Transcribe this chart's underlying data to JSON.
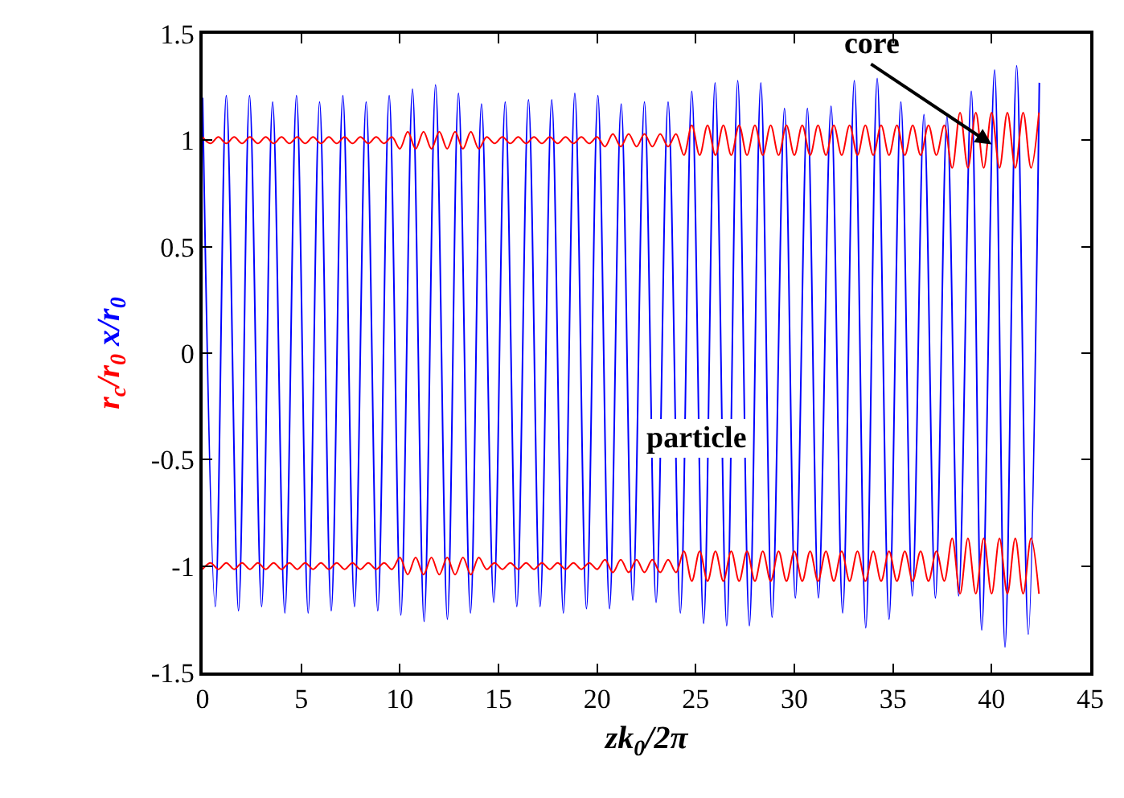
{
  "chart_data": {
    "type": "line",
    "xlabel": "zk$_{0}$/2π",
    "xlim": [
      0,
      45
    ],
    "xticks": [
      0,
      5,
      10,
      15,
      20,
      25,
      30,
      35,
      40,
      45
    ],
    "ylim": [
      -1.5,
      1.5
    ],
    "yticks": [
      -1.5,
      -1,
      -0.5,
      0,
      0.5,
      1,
      1.5
    ],
    "legend": false,
    "marker": "none",
    "line_style": "solid",
    "series": [
      {
        "name": "r$_{c}$/r$_{0}$",
        "color": "#ff0000",
        "x": [
          0,
          0.4,
          0.8,
          1.2,
          1.6,
          2,
          2.4,
          2.8,
          3.2,
          3.6,
          4,
          4.4,
          4.8,
          5.2,
          5.6,
          6,
          6.4,
          6.8,
          7.2,
          7.6,
          8,
          8.4,
          8.8,
          9.2,
          9.6,
          10,
          10.4,
          10.8,
          11.2,
          11.6,
          12,
          12.4,
          12.8,
          13.2,
          13.6,
          14,
          14.4,
          14.8,
          15.2,
          15.6,
          16,
          16.4,
          16.8,
          17.2,
          17.6,
          18,
          18.4,
          18.8,
          19.2,
          19.6,
          20,
          20.4,
          20.8,
          21.2,
          21.6,
          22,
          22.4,
          22.8,
          23.2,
          23.6,
          24,
          24.4,
          24.8,
          25.2,
          25.6,
          26,
          26.4,
          26.8,
          27.2,
          27.6,
          28,
          28.4,
          28.8,
          29.2,
          29.6,
          30,
          30.4,
          30.8,
          31.2,
          31.6,
          32,
          32.4,
          32.8,
          33.2,
          33.6,
          34,
          34.4,
          34.8,
          35.2,
          35.6,
          36,
          36.4,
          36.8,
          37.2,
          37.6,
          38,
          38.4,
          38.8,
          39.2,
          39.6,
          40,
          40.4,
          40.8,
          41.2,
          41.6,
          42,
          42.4
        ],
        "values": [
          1.015,
          0.985,
          1.015,
          0.985,
          1.015,
          0.985,
          1.015,
          0.985,
          1.015,
          0.985,
          1.015,
          0.985,
          1.015,
          0.985,
          1.015,
          0.985,
          1.015,
          0.985,
          1.015,
          0.985,
          1.015,
          0.985,
          1.015,
          0.985,
          1.015,
          0.96,
          1.04,
          0.96,
          1.04,
          0.96,
          1.04,
          0.96,
          1.04,
          0.96,
          1.04,
          0.96,
          1.015,
          0.985,
          1.015,
          0.985,
          1.015,
          0.985,
          1.015,
          0.985,
          1.015,
          0.985,
          1.015,
          0.985,
          1.015,
          0.985,
          1.015,
          0.97,
          1.03,
          0.97,
          1.03,
          0.97,
          1.03,
          0.97,
          1.03,
          0.97,
          1.03,
          0.93,
          1.07,
          0.93,
          1.07,
          0.93,
          1.07,
          0.93,
          1.07,
          0.93,
          1.07,
          0.93,
          1.07,
          0.93,
          1.07,
          0.93,
          1.07,
          0.93,
          1.07,
          0.93,
          1.07,
          0.93,
          1.07,
          0.93,
          1.07,
          0.93,
          1.07,
          0.93,
          1.07,
          0.93,
          1.07,
          0.93,
          1.07,
          0.93,
          1.07,
          0.87,
          1.13,
          0.87,
          1.13,
          0.87,
          1.13,
          0.87,
          1.13,
          0.87,
          1.13,
          0.87,
          1.13
        ]
      },
      {
        "color": "#ff0000",
        "x": [
          0,
          0.4,
          0.8,
          1.2,
          1.6,
          2,
          2.4,
          2.8,
          3.2,
          3.6,
          4,
          4.4,
          4.8,
          5.2,
          5.6,
          6,
          6.4,
          6.8,
          7.2,
          7.6,
          8,
          8.4,
          8.8,
          9.2,
          9.6,
          10,
          10.4,
          10.8,
          11.2,
          11.6,
          12,
          12.4,
          12.8,
          13.2,
          13.6,
          14,
          14.4,
          14.8,
          15.2,
          15.6,
          16,
          16.4,
          16.8,
          17.2,
          17.6,
          18,
          18.4,
          18.8,
          19.2,
          19.6,
          20,
          20.4,
          20.8,
          21.2,
          21.6,
          22,
          22.4,
          22.8,
          23.2,
          23.6,
          24,
          24.4,
          24.8,
          25.2,
          25.6,
          26,
          26.4,
          26.8,
          27.2,
          27.6,
          28,
          28.4,
          28.8,
          29.2,
          29.6,
          30,
          30.4,
          30.8,
          31.2,
          31.6,
          32,
          32.4,
          32.8,
          33.2,
          33.6,
          34,
          34.4,
          34.8,
          35.2,
          35.6,
          36,
          36.4,
          36.8,
          37.2,
          37.6,
          38,
          38.4,
          38.8,
          39.2,
          39.6,
          40,
          40.4,
          40.8,
          41.2,
          41.6,
          42,
          42.4
        ],
        "values": [
          -1.015,
          -0.985,
          -1.015,
          -0.985,
          -1.015,
          -0.985,
          -1.015,
          -0.985,
          -1.015,
          -0.985,
          -1.015,
          -0.985,
          -1.015,
          -0.985,
          -1.015,
          -0.985,
          -1.015,
          -0.985,
          -1.015,
          -0.985,
          -1.015,
          -0.985,
          -1.015,
          -0.985,
          -1.015,
          -0.96,
          -1.04,
          -0.96,
          -1.04,
          -0.96,
          -1.04,
          -0.96,
          -1.04,
          -0.96,
          -1.04,
          -0.96,
          -1.015,
          -0.985,
          -1.015,
          -0.985,
          -1.015,
          -0.985,
          -1.015,
          -0.985,
          -1.015,
          -0.985,
          -1.015,
          -0.985,
          -1.015,
          -0.985,
          -1.015,
          -0.97,
          -1.03,
          -0.97,
          -1.03,
          -0.97,
          -1.03,
          -0.97,
          -1.03,
          -0.97,
          -1.03,
          -0.93,
          -1.07,
          -0.93,
          -1.07,
          -0.93,
          -1.07,
          -0.93,
          -1.07,
          -0.93,
          -1.07,
          -0.93,
          -1.07,
          -0.93,
          -1.07,
          -0.93,
          -1.07,
          -0.93,
          -1.07,
          -0.93,
          -1.07,
          -0.93,
          -1.07,
          -0.93,
          -1.07,
          -0.93,
          -1.07,
          -0.93,
          -1.07,
          -0.93,
          -1.07,
          -0.93,
          -1.07,
          -0.93,
          -1.07,
          -0.87,
          -1.13,
          -0.87,
          -1.13,
          -0.87,
          -1.13,
          -0.87,
          -1.13,
          -0.87,
          -1.13,
          -0.87,
          -1.13
        ]
      },
      {
        "name": "x/r$_{0}$",
        "color": "#0000ff",
        "x": [
          0,
          0.64,
          1.2,
          1.82,
          2.38,
          2.99,
          3.55,
          4.17,
          4.76,
          5.35,
          5.93,
          6.52,
          7.11,
          7.7,
          8.29,
          8.88,
          9.46,
          10.05,
          10.64,
          11.23,
          11.81,
          12.41,
          12.97,
          13.58,
          14.14,
          14.76,
          15.34,
          15.93,
          16.52,
          17.11,
          17.7,
          18.29,
          18.87,
          19.46,
          20.04,
          20.63,
          21.22,
          21.81,
          22.4,
          22.99,
          23.6,
          24.22,
          24.8,
          25.4,
          25.98,
          26.57,
          27.13,
          27.72,
          28.3,
          28.87,
          29.5,
          30.05,
          30.66,
          31.22,
          31.86,
          32.45,
          33.04,
          33.62,
          34.2,
          34.8,
          35.4,
          35.98,
          36.57,
          37.15,
          37.74,
          38.33,
          38.97,
          39.5,
          40.15,
          40.68,
          41.27,
          41.86,
          42.42
        ],
        "values": [
          1.2,
          -1.19,
          1.21,
          -1.21,
          1.21,
          -1.19,
          1.18,
          -1.22,
          1.21,
          -1.22,
          1.18,
          -1.21,
          1.21,
          -1.19,
          1.18,
          -1.21,
          1.21,
          -1.23,
          1.24,
          -1.26,
          1.26,
          -1.25,
          1.22,
          -1.22,
          1.17,
          -1.17,
          1.18,
          -1.19,
          1.19,
          -1.19,
          1.19,
          -1.22,
          1.22,
          -1.2,
          1.21,
          -1.2,
          1.17,
          -1.16,
          1.18,
          -1.17,
          1.18,
          -1.22,
          1.23,
          -1.27,
          1.27,
          -1.28,
          1.28,
          -1.28,
          1.27,
          -1.24,
          1.15,
          -1.15,
          1.15,
          -1.15,
          1.16,
          -1.22,
          1.28,
          -1.29,
          1.29,
          -1.25,
          1.18,
          -1.14,
          1.12,
          -1.15,
          1.11,
          -1.14,
          1.23,
          -1.3,
          1.33,
          -1.38,
          1.35,
          -1.32,
          1.27
        ]
      }
    ],
    "annotations": [
      {
        "text": "core",
        "x": 40,
        "y": 0.98
      },
      {
        "text": "particle",
        "x": 25,
        "y": -0.4
      }
    ]
  }
}
